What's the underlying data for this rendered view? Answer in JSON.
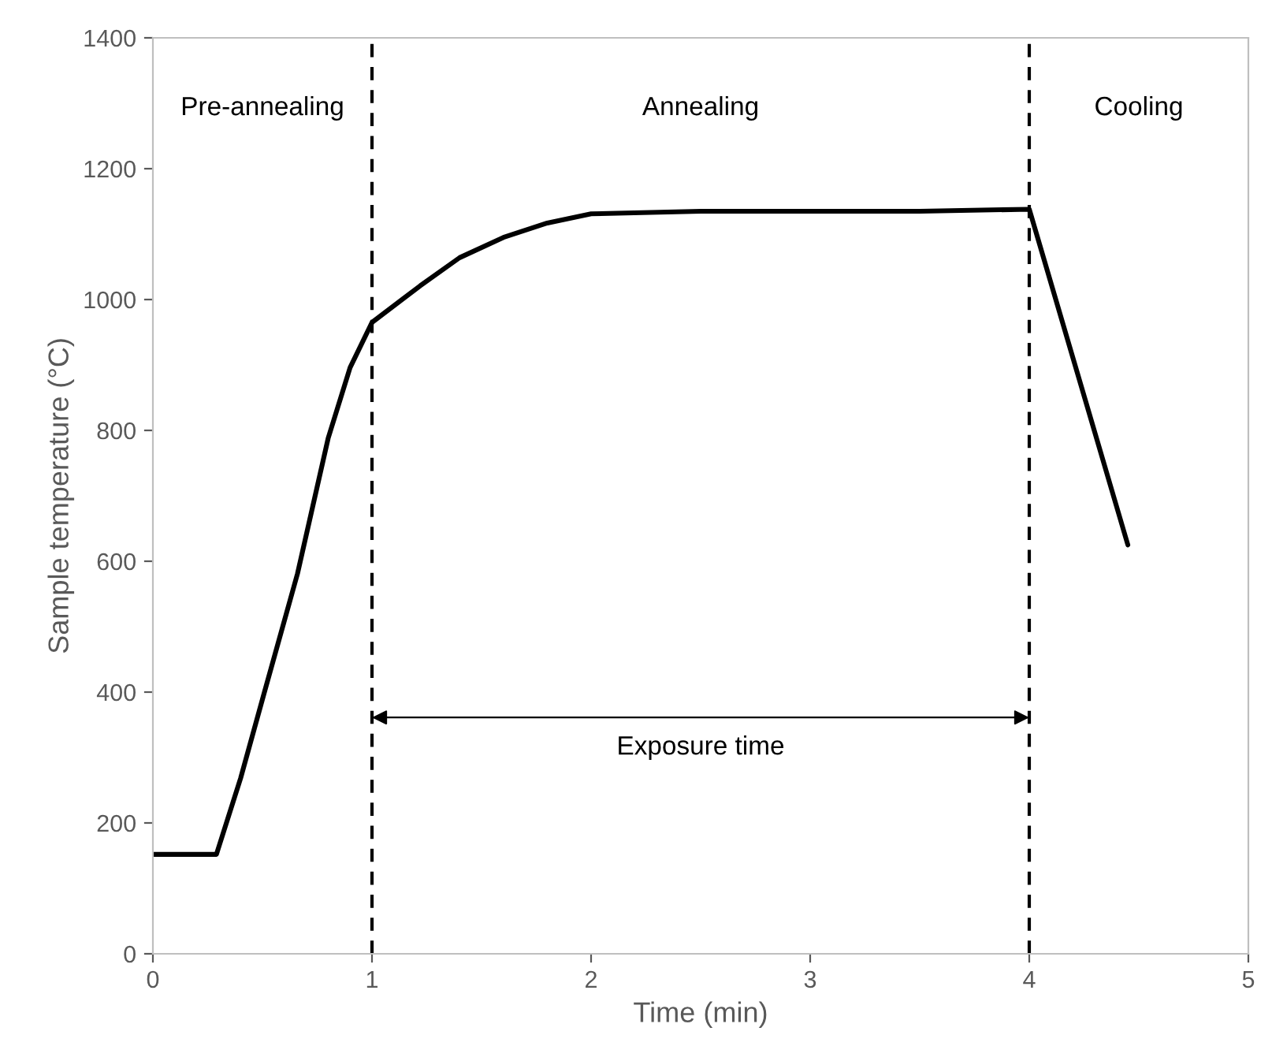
{
  "chart_data": {
    "type": "line",
    "xlabel": "Time (min)",
    "ylabel": "Sample temperature (°C)",
    "xlim": [
      0,
      5
    ],
    "xticks": [
      0,
      1,
      2,
      3,
      4,
      5
    ],
    "ylim": [
      0,
      1400
    ],
    "yticks": [
      0,
      200,
      400,
      600,
      800,
      1000,
      1200,
      1400
    ],
    "grid": false,
    "marker": "none",
    "line_style": "solid",
    "series": [
      {
        "color": "#000000",
        "x": [
          0,
          0.29,
          0.4,
          0.51,
          0.66,
          0.8,
          0.9,
          1.0,
          1.22,
          1.4,
          1.6,
          1.8,
          2.0,
          2.5,
          3.5,
          4.0,
          4.45
        ],
        "values": [
          152,
          152,
          268,
          401,
          581,
          788,
          896,
          965,
          1021,
          1064,
          1095,
          1117,
          1131,
          1135,
          1135,
          1138,
          625
        ]
      }
    ],
    "ref_lines": [
      {
        "axis": "x",
        "value": 1,
        "color": "#000000",
        "line_style": "dashed"
      },
      {
        "axis": "x",
        "value": 4,
        "color": "#000000",
        "line_style": "dashed"
      }
    ],
    "annotations": [
      "Pre-annealing",
      "Annealing",
      "Cooling",
      "Exposure time"
    ]
  }
}
